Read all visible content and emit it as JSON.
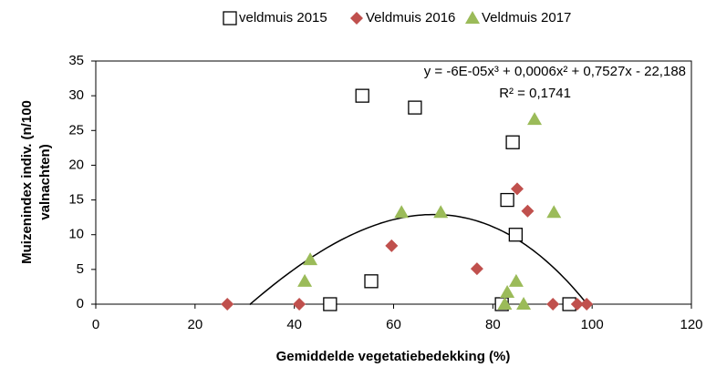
{
  "chart_data": {
    "type": "scatter",
    "xlabel": "Gemiddelde  vegetatiebedekking (%)",
    "ylabel": [
      "Muizenindex indiv. (n/100",
      "valnachten)"
    ],
    "xlim": [
      0,
      120
    ],
    "xticks": [
      0,
      20,
      40,
      60,
      80,
      100,
      120
    ],
    "ylim": [
      0,
      35
    ],
    "yticks": [
      0,
      5,
      10,
      15,
      20,
      25,
      30,
      35
    ],
    "series": [
      {
        "name": "veldmuis 2015",
        "color": "#000000",
        "marker": "square",
        "x": [
          53.7,
          64.3,
          84.0,
          82.9,
          84.6,
          55.5,
          47.2,
          81.8,
          95.4
        ],
        "values": [
          30,
          28.3,
          23.3,
          15,
          10,
          3.3,
          0,
          0,
          0
        ]
      },
      {
        "name": "Veldmuis 2016",
        "color": "#c0504d",
        "marker": "diamond",
        "x": [
          26.5,
          41,
          59.6,
          76.8,
          84.9,
          87,
          92.1,
          97,
          98.9
        ],
        "values": [
          0,
          0,
          8.4,
          5.1,
          16.6,
          13.4,
          0,
          0,
          0
        ]
      },
      {
        "name": "Veldmuis 2017",
        "color": "#9bbb59",
        "marker": "triangle",
        "x": [
          42.1,
          43.2,
          61.6,
          69.5,
          88.4,
          92.3,
          84.7,
          82.9,
          82.4,
          86.2
        ],
        "values": [
          3.3,
          6.4,
          13.2,
          13.2,
          26.6,
          13.2,
          3.3,
          1.7,
          0,
          0
        ]
      }
    ],
    "trendline": {
      "equation": "y = -6E-05x³ + 0,0006x² + 0,7527x - 22,188",
      "r_squared": "R² = 0,1741",
      "coefficients": [
        -6e-05,
        0.0006,
        0.7527,
        -22.188
      ],
      "x_range": [
        31,
        99
      ],
      "color": "#000000"
    }
  }
}
